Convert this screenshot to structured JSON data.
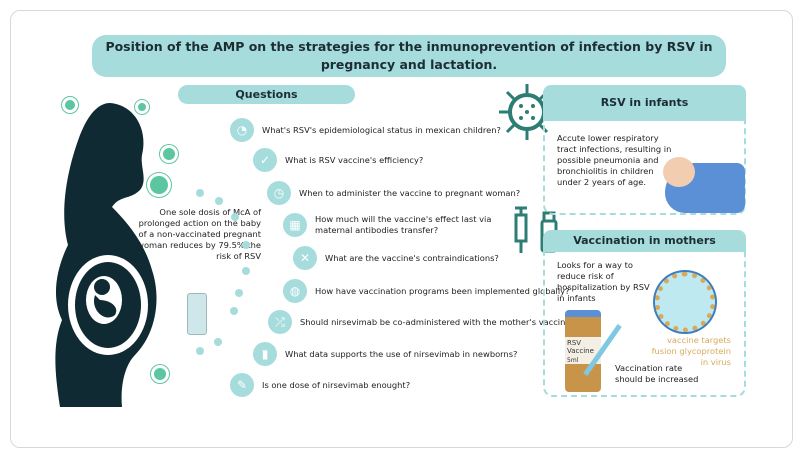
{
  "title": "Position of the AMP on the strategies for the inmunoprevention of infection by RSV in pregnancy and lactation.",
  "questions_label": "Questions",
  "questions": [
    {
      "icon": "gauge-icon",
      "text": "What's RSV's epidemiological status in mexican children?"
    },
    {
      "icon": "check-circle-icon",
      "text": "What is RSV vaccine's efficiency?"
    },
    {
      "icon": "stopwatch-icon",
      "text": "When to administer the vaccine to pregnant woman?"
    },
    {
      "icon": "calendar-icon",
      "text": "How much will the vaccine's effect last via maternal antibodies transfer?"
    },
    {
      "icon": "x-circle-icon",
      "text": "What are the vaccine's contraindications?"
    },
    {
      "icon": "globe-icon",
      "text": "How have vaccination programs been implemented globally?"
    },
    {
      "icon": "shuffle-icon",
      "text": "Should nirsevimab be co-administered with the mother's vaccine?"
    },
    {
      "icon": "bar-chart-icon",
      "text": "What data supports the use of nirsevimab in newborns?"
    },
    {
      "icon": "syringe-icon",
      "text": "Is one dose of nirsevimab enought?"
    }
  ],
  "side_note": "One sole dosis  of McA of prolonged action on the baby of a non-vaccinated pregnant woman reduces by 79.5% the risk of RSV",
  "infants": {
    "title": "RSV in infants",
    "text": "Accute lower respiratory tract infections, resulting in possible pneumonia and bronchiolitis in children under 2 years of age."
  },
  "mothers": {
    "title": "Vaccination in mothers",
    "text": "Looks for a way to reduce risk of hospitalization by RSV in infants",
    "vial_label": "RSV Vaccine",
    "vial_dose": "5ml",
    "fusion_note": "vaccine targets fusion glycoprotein in virus",
    "rate_note": "Vaccination rate should be increased"
  },
  "colors": {
    "accent": "#a6dcdc",
    "dark": "#0f2a33",
    "teal": "#2e7d74",
    "green": "#5cc6a0",
    "gold": "#d9a95a"
  }
}
